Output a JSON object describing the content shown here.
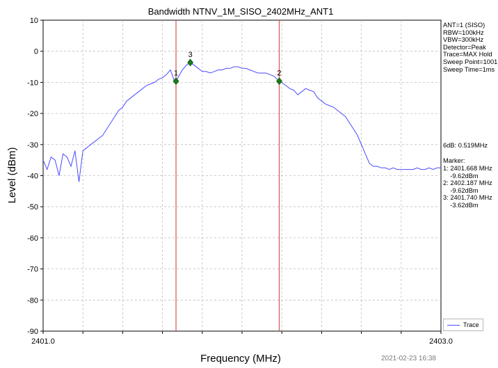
{
  "chart_data": {
    "type": "line",
    "title": "Bandwidth NTNV_1M_SISO_2402MHz_ANT1",
    "xlabel": "Frequency (MHz)",
    "ylabel": "Level (dBm)",
    "xlim": [
      2401.0,
      2403.0
    ],
    "ylim": [
      -90,
      10
    ],
    "x_tick_labels": [
      "2401.0",
      "2403.0"
    ],
    "y_ticks": [
      10,
      0,
      -10,
      -20,
      -30,
      -40,
      -50,
      -60,
      -70,
      -80,
      -90
    ],
    "grid": true,
    "legend_position": "bottom-right",
    "series": [
      {
        "name": "Trace",
        "color": "#4a4aff",
        "x": [
          2401.0,
          2401.02,
          2401.04,
          2401.06,
          2401.08,
          2401.1,
          2401.12,
          2401.14,
          2401.16,
          2401.18,
          2401.2,
          2401.22,
          2401.24,
          2401.26,
          2401.28,
          2401.3,
          2401.32,
          2401.34,
          2401.36,
          2401.38,
          2401.4,
          2401.42,
          2401.44,
          2401.46,
          2401.48,
          2401.5,
          2401.52,
          2401.54,
          2401.56,
          2401.58,
          2401.6,
          2401.62,
          2401.64,
          2401.66,
          2401.668,
          2401.7,
          2401.72,
          2401.74,
          2401.76,
          2401.78,
          2401.8,
          2401.82,
          2401.84,
          2401.86,
          2401.88,
          2401.9,
          2401.92,
          2401.94,
          2401.96,
          2401.98,
          2402.0,
          2402.02,
          2402.04,
          2402.06,
          2402.08,
          2402.1,
          2402.12,
          2402.14,
          2402.16,
          2402.187,
          2402.2,
          2402.22,
          2402.24,
          2402.26,
          2402.28,
          2402.3,
          2402.32,
          2402.34,
          2402.36,
          2402.38,
          2402.4,
          2402.42,
          2402.44,
          2402.46,
          2402.48,
          2402.5,
          2402.52,
          2402.54,
          2402.56,
          2402.58,
          2402.6,
          2402.62,
          2402.64,
          2402.66,
          2402.68,
          2402.7,
          2402.72,
          2402.74,
          2402.76,
          2402.78,
          2402.8,
          2402.82,
          2402.84,
          2402.86,
          2402.88,
          2402.9,
          2402.92,
          2402.94,
          2402.96,
          2402.98,
          2403.0
        ],
        "y": [
          -35,
          -38,
          -34,
          -35,
          -40,
          -33,
          -34,
          -37,
          -32,
          -42,
          -32,
          -31,
          -30,
          -29,
          -28,
          -27,
          -25,
          -23,
          -21,
          -19,
          -18,
          -16,
          -15,
          -14,
          -13,
          -12,
          -11,
          -10.5,
          -10,
          -9,
          -8.5,
          -7.5,
          -6,
          -9.62,
          -9.62,
          -6,
          -4.5,
          -3.62,
          -4.5,
          -5.5,
          -6.5,
          -6.5,
          -7,
          -6.5,
          -6,
          -6,
          -5.5,
          -5.5,
          -5,
          -5,
          -5.5,
          -5.5,
          -6,
          -6.5,
          -7,
          -7,
          -7,
          -7.5,
          -8,
          -9.62,
          -10,
          -11,
          -12,
          -12.5,
          -14,
          -13,
          -12,
          -12.5,
          -13,
          -15,
          -16,
          -17,
          -17.5,
          -18,
          -19,
          -20,
          -21,
          -23,
          -25,
          -27,
          -30,
          -33,
          -36,
          -37,
          -37,
          -37.5,
          -37.5,
          -38,
          -37.5,
          -38,
          -38,
          -38,
          -38,
          -38,
          -37.5,
          -38,
          -38,
          -37.5,
          -38,
          -37.5,
          -37.5
        ]
      }
    ],
    "vertical_lines": [
      2401.668,
      2402.187
    ],
    "markers": [
      {
        "label": "1",
        "x": 2401.668,
        "y": -9.62
      },
      {
        "label": "2",
        "x": 2402.187,
        "y": -9.62
      },
      {
        "label": "3",
        "x": 2401.74,
        "y": -3.62
      }
    ]
  },
  "side_panel": {
    "settings": [
      "ANT=1 (SISO)",
      "RBW=100kHz",
      "VBW=300kHz",
      "Detector=Peak",
      "Trace=MAX Hold",
      "Sweep Point=1001",
      "Sweep Time=1ms"
    ],
    "bandwidth": "6dB: 0.519MHz",
    "marker_header": "Marker:",
    "marker_lines": [
      "1: 2401.668 MHz",
      "    -9.62dBm",
      "2: 2402.187 MHz",
      "    -9.62dBm",
      "3: 2401.740 MHz",
      "    -3.62dBm"
    ]
  },
  "legend": {
    "label": "Trace"
  },
  "timestamp": "2021-02-23 16:38"
}
